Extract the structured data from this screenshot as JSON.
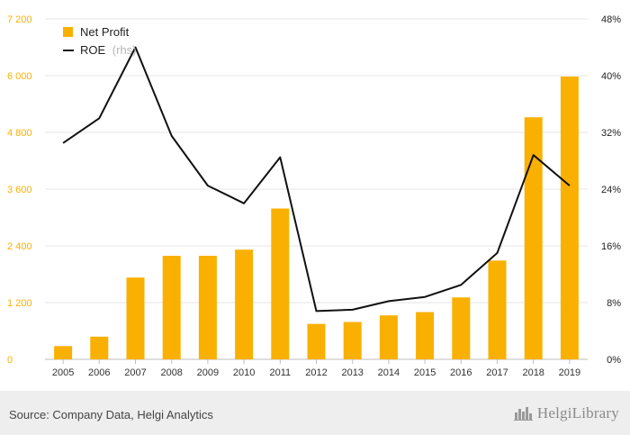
{
  "chart_data": {
    "type": "bar",
    "categories": [
      "2005",
      "2006",
      "2007",
      "2008",
      "2009",
      "2010",
      "2011",
      "2012",
      "2013",
      "2014",
      "2015",
      "2016",
      "2017",
      "2018",
      "2019"
    ],
    "series": [
      {
        "name": "Net Profit",
        "type": "bar",
        "axis": "left",
        "color": "#f9b000",
        "values": [
          280,
          480,
          1730,
          2190,
          2190,
          2320,
          3190,
          750,
          790,
          930,
          1000,
          1310,
          2090,
          5120,
          5980
        ]
      },
      {
        "name": "ROE",
        "legend_suffix": "(rhs)",
        "type": "line",
        "axis": "right",
        "color": "#111111",
        "values": [
          30.5,
          34.0,
          44.0,
          31.5,
          24.5,
          22.0,
          28.5,
          6.8,
          7.0,
          8.2,
          8.8,
          10.5,
          15.0,
          28.8,
          24.5
        ]
      }
    ],
    "y_left": {
      "ylim": [
        0,
        7200
      ],
      "ticks": [
        0,
        1200,
        2400,
        3600,
        4800,
        6000,
        7200
      ],
      "tick_labels": [
        "0",
        "1 200",
        "2 400",
        "3 600",
        "4 800",
        "6 000",
        "7 200"
      ],
      "tick_color": "#f9b000"
    },
    "y_right": {
      "ylim": [
        0,
        48
      ],
      "ticks": [
        0,
        8,
        16,
        24,
        32,
        40,
        48
      ],
      "tick_labels": [
        "0%",
        "8%",
        "16%",
        "24%",
        "32%",
        "40%",
        "48%"
      ]
    },
    "grid": "horizontal",
    "legend": "top-left"
  },
  "footer": {
    "source": "Source: Company Data, Helgi Analytics",
    "brand": "HelgiLibrary",
    "brand_icon": "skyline-logo-icon"
  }
}
